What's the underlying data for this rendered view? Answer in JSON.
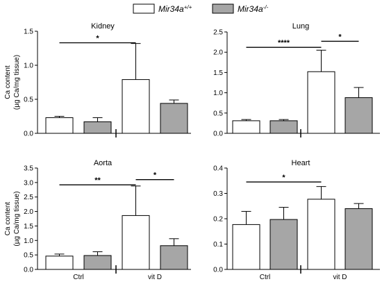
{
  "legend": [
    {
      "label": "Mir34a",
      "sup": "+/+",
      "color": "#ffffff"
    },
    {
      "label": "Mir34a",
      "sup": "-/-",
      "color": "#a6a6a6"
    }
  ],
  "ylabel_lines": [
    "Ca content",
    "(µg Ca/mg tissue)"
  ],
  "group_labels": [
    "Ctrl",
    "vit D"
  ],
  "chart_data": [
    {
      "type": "bar",
      "title": "Kidney",
      "categories": [
        "Ctrl",
        "vit D"
      ],
      "series": [
        {
          "name": "Mir34a+/+",
          "values": [
            0.23,
            0.79
          ],
          "errors": [
            0.02,
            0.53
          ]
        },
        {
          "name": "Mir34a-/-",
          "values": [
            0.17,
            0.44
          ],
          "errors": [
            0.06,
            0.05
          ]
        }
      ],
      "ylim": [
        0,
        1.5
      ],
      "yticks": [
        "0.0",
        "0.5",
        "1.0",
        "1.5"
      ],
      "significance": [
        {
          "from_bar": 0,
          "to_bar": 2,
          "label": "*",
          "y": 1.33
        }
      ]
    },
    {
      "type": "bar",
      "title": "Lung",
      "categories": [
        "Ctrl",
        "vit D"
      ],
      "series": [
        {
          "name": "Mir34a+/+",
          "values": [
            0.31,
            1.52
          ],
          "errors": [
            0.03,
            0.53
          ]
        },
        {
          "name": "Mir34a-/-",
          "values": [
            0.31,
            0.88
          ],
          "errors": [
            0.03,
            0.25
          ]
        }
      ],
      "ylim": [
        0,
        2.5
      ],
      "yticks": [
        "0.0",
        "0.5",
        "1.0",
        "1.5",
        "2.0",
        "2.5"
      ],
      "significance": [
        {
          "from_bar": 0,
          "to_bar": 2,
          "label": "****",
          "y": 2.12
        },
        {
          "from_bar": 2,
          "to_bar": 3,
          "label": "*",
          "y": 2.27
        }
      ]
    },
    {
      "type": "bar",
      "title": "Aorta",
      "categories": [
        "Ctrl",
        "vit D"
      ],
      "series": [
        {
          "name": "Mir34a+/+",
          "values": [
            0.46,
            1.86
          ],
          "errors": [
            0.07,
            1.02
          ]
        },
        {
          "name": "Mir34a-/-",
          "values": [
            0.48,
            0.82
          ],
          "errors": [
            0.13,
            0.24
          ]
        }
      ],
      "ylim": [
        0,
        3.5
      ],
      "yticks": [
        "0.0",
        "0.5",
        "1.0",
        "1.5",
        "2.0",
        "2.5",
        "3.0",
        "3.5"
      ],
      "significance": [
        {
          "from_bar": 0,
          "to_bar": 2,
          "label": "**",
          "y": 2.92
        },
        {
          "from_bar": 2,
          "to_bar": 3,
          "label": "*",
          "y": 3.1
        }
      ]
    },
    {
      "type": "bar",
      "title": "Heart",
      "categories": [
        "Ctrl",
        "vit D"
      ],
      "series": [
        {
          "name": "Mir34a+/+",
          "values": [
            0.177,
            0.277
          ],
          "errors": [
            0.052,
            0.05
          ]
        },
        {
          "name": "Mir34a-/-",
          "values": [
            0.197,
            0.24
          ],
          "errors": [
            0.048,
            0.02
          ]
        }
      ],
      "ylim": [
        0,
        0.4
      ],
      "yticks": [
        "0.0",
        "0.1",
        "0.2",
        "0.3",
        "0.4"
      ],
      "significance": [
        {
          "from_bar": 0,
          "to_bar": 2,
          "label": "*",
          "y": 0.345
        }
      ]
    }
  ]
}
